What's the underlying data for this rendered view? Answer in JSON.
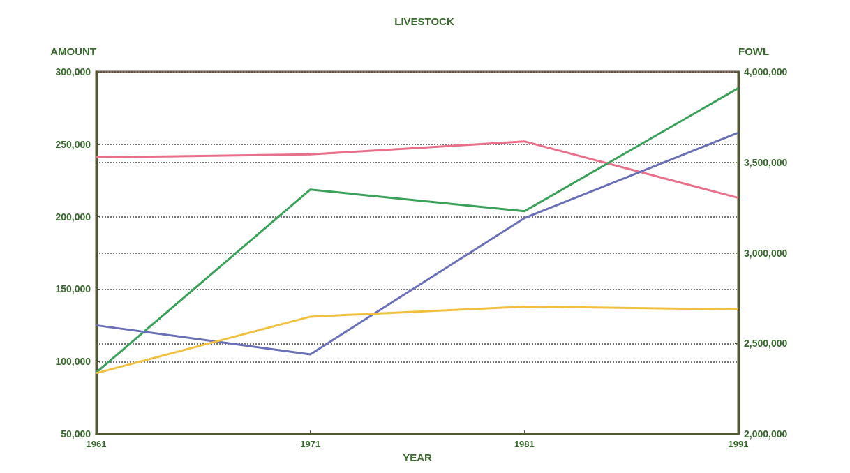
{
  "chart_data": {
    "type": "line",
    "title": "LIVESTOCK",
    "xlabel": "YEAR",
    "ylabel": "AMOUNT",
    "y2label": "FOWL",
    "categories": [
      "1961",
      "1971",
      "1981",
      "1991"
    ],
    "series": [
      {
        "color": "#e8708a",
        "values": [
          241000,
          243000,
          252000,
          213000
        ]
      },
      {
        "color": "#3aa05a",
        "values": [
          2340000,
          3350000,
          3230000,
          3910000
        ],
        "axis": "y2"
      },
      {
        "color": "#6a70b8",
        "values": [
          125000,
          105000,
          199000,
          258000
        ]
      },
      {
        "color": "#f0c040",
        "values": [
          92000,
          131000,
          138000,
          136000
        ]
      }
    ],
    "ylim": [
      50000,
      300000
    ],
    "yticks": [
      {
        "value": 50000,
        "label": "50,000"
      },
      {
        "value": 100000,
        "label": "100,000"
      },
      {
        "value": 150000,
        "label": "150,000"
      },
      {
        "value": 200000,
        "label": "200,000"
      },
      {
        "value": 250000,
        "label": "250,000"
      },
      {
        "value": 300000,
        "label": "300,000"
      }
    ],
    "y2lim": [
      2000000,
      4000000
    ],
    "y2ticks": [
      {
        "value": 2000000,
        "label": "2,000,000"
      },
      {
        "value": 2500000,
        "label": "2,500,000"
      },
      {
        "value": 3000000,
        "label": "3,000,000"
      },
      {
        "value": 3500000,
        "label": "3,500,000"
      },
      {
        "value": 4000000,
        "label": "4,000,000"
      }
    ],
    "grid": "y",
    "marker": "none",
    "line_style": "solid"
  }
}
